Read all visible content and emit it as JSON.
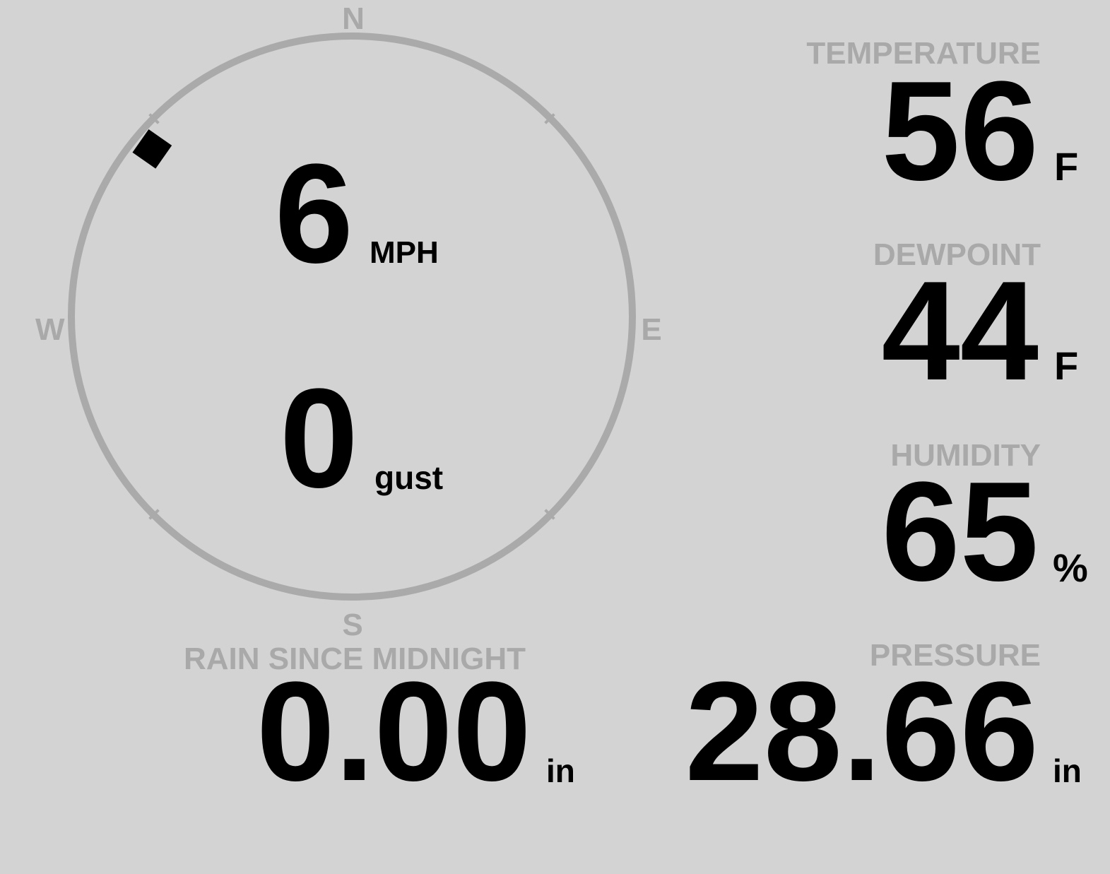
{
  "compass": {
    "north": "N",
    "south": "S",
    "east": "E",
    "west": "W",
    "direction_degrees": 310
  },
  "wind": {
    "speed": "6",
    "speed_unit": "MPH",
    "gust": "0",
    "gust_label": "gust"
  },
  "temperature": {
    "label": "TEMPERATURE",
    "value": "56",
    "unit": "F"
  },
  "dewpoint": {
    "label": "DEWPOINT",
    "value": "44",
    "unit": "F"
  },
  "humidity": {
    "label": "HUMIDITY",
    "value": "65",
    "unit": "%"
  },
  "rain": {
    "label": "RAIN SINCE MIDNIGHT",
    "value": "0.00",
    "unit": "in"
  },
  "pressure": {
    "label": "PRESSURE",
    "value": "28.66",
    "unit": "in"
  },
  "colors": {
    "background": "#d3d3d3",
    "label": "#a9a9a9",
    "value": "#000000",
    "dial": "#aaaaaa"
  }
}
